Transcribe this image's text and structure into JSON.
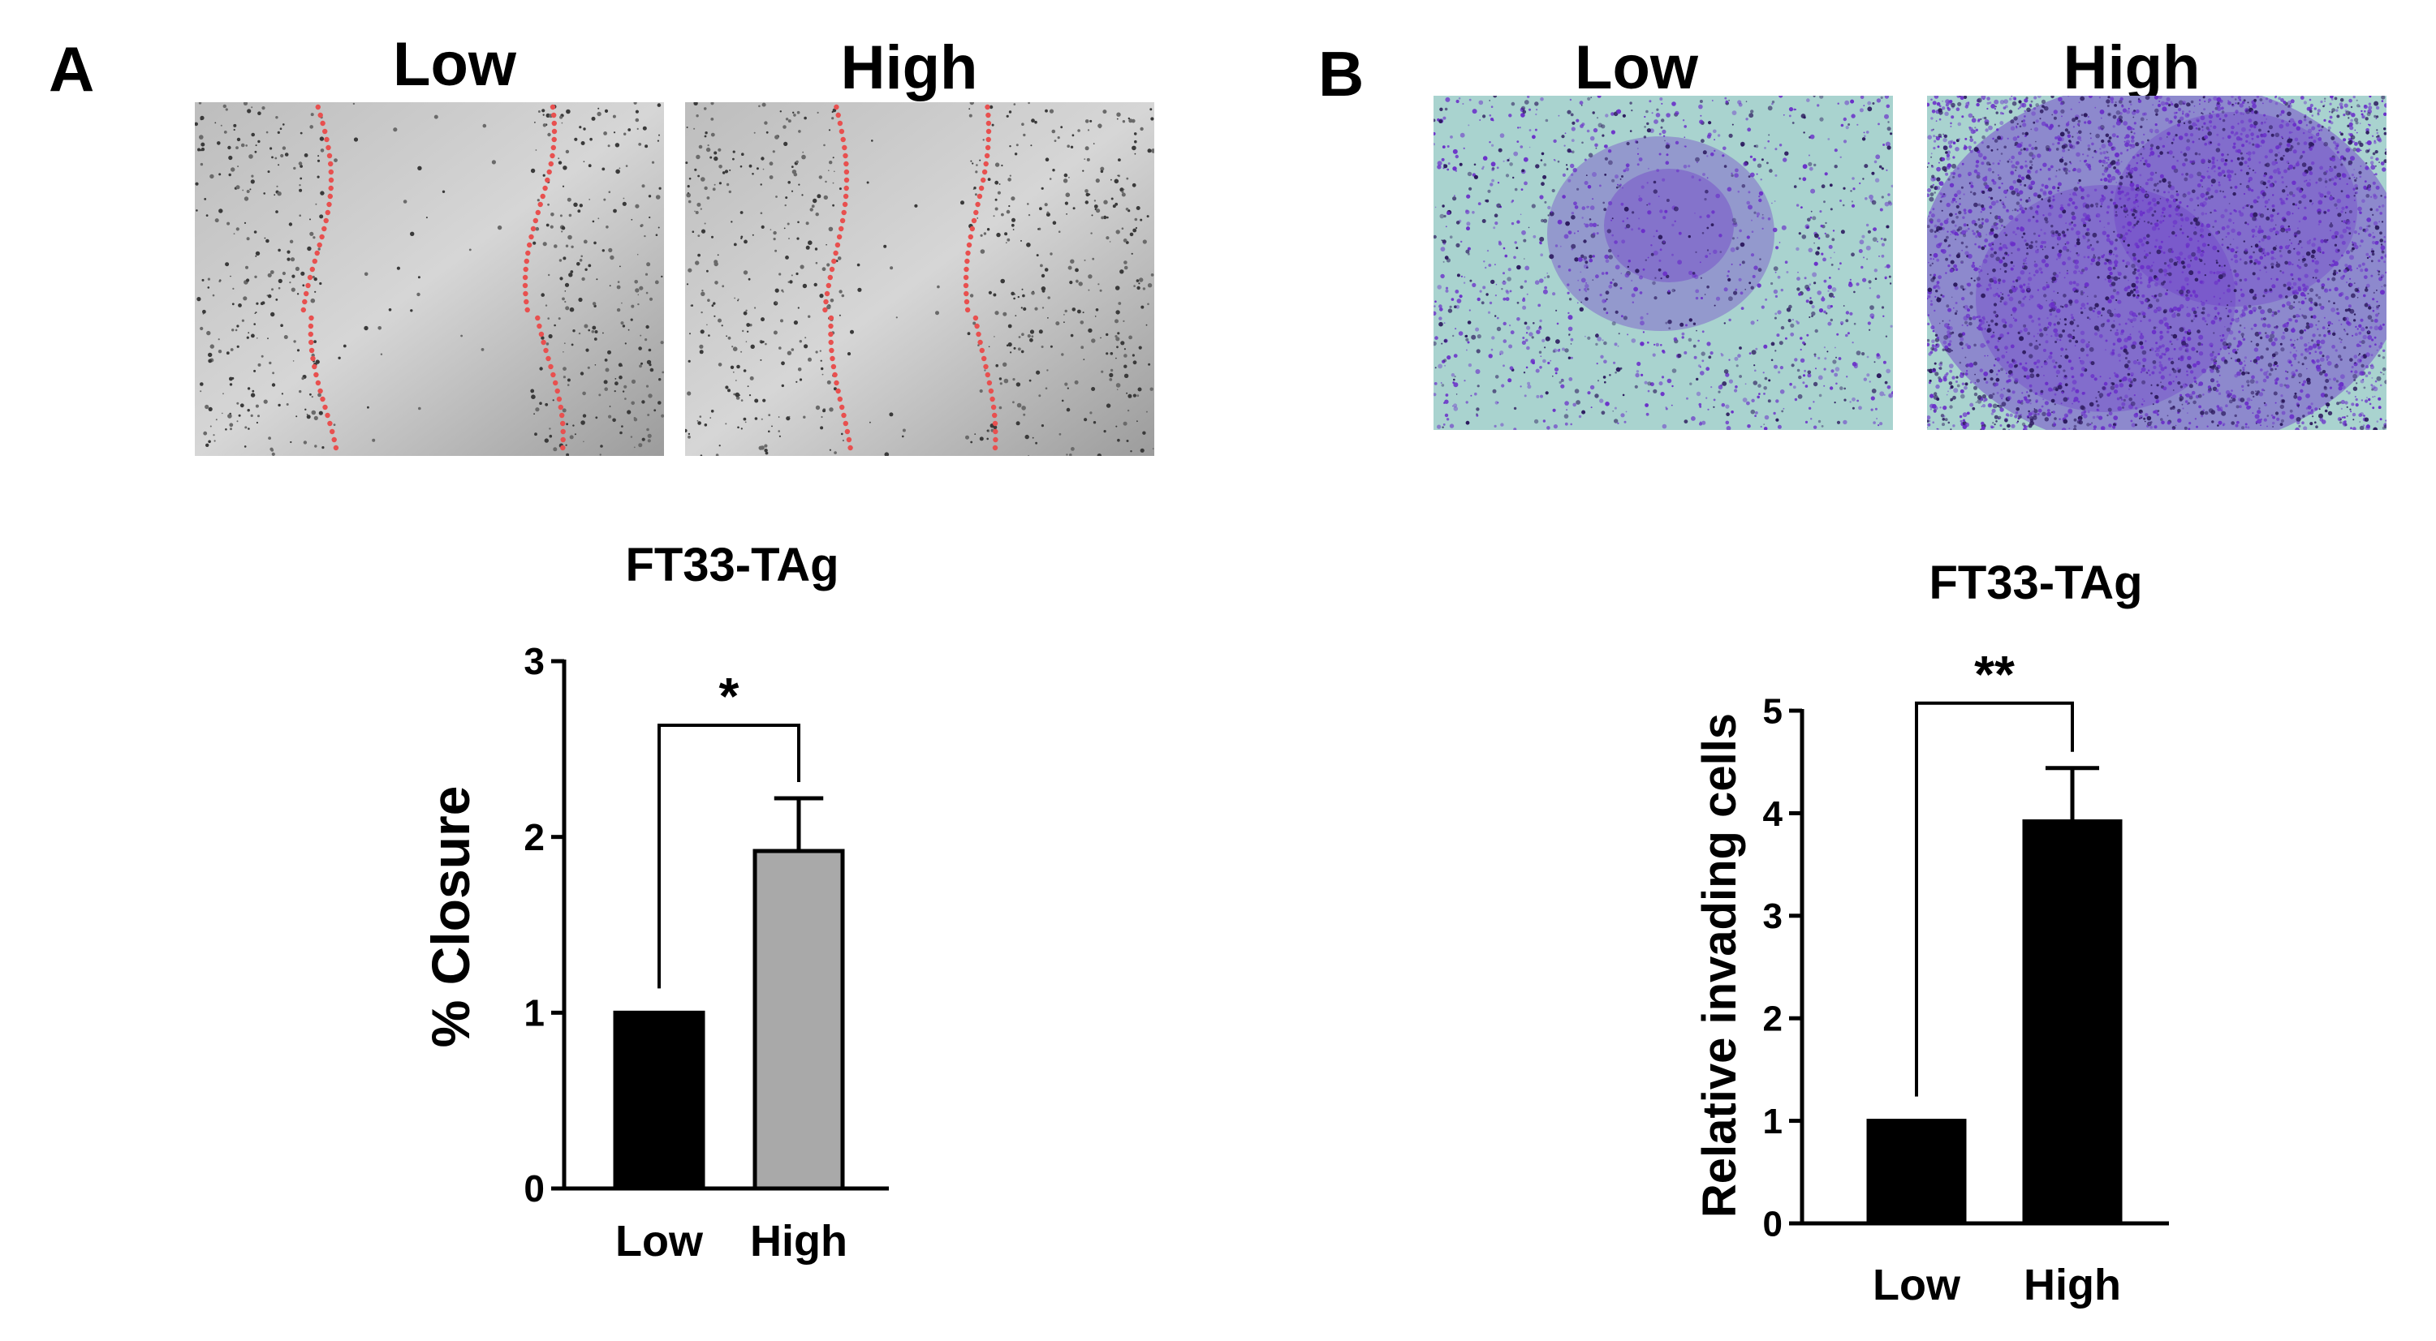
{
  "panels": {
    "A": {
      "letter": "A",
      "image_labels": [
        "Low",
        "High"
      ],
      "wound_line_color": "#e8504f"
    },
    "B": {
      "letter": "B",
      "image_labels": [
        "Low",
        "High"
      ],
      "stain_color": "#6a2fc9"
    }
  },
  "chart_data": [
    {
      "type": "bar",
      "title": "FT33-TAg",
      "categories": [
        "Low",
        "High"
      ],
      "values": [
        1.0,
        1.92
      ],
      "errors": [
        0,
        0.3
      ],
      "ylabel": "% Closure",
      "xlabel": "",
      "ylim": [
        0,
        3
      ],
      "yticks": [
        "0",
        "1",
        "2",
        "3"
      ],
      "bar_colors": [
        "#000000",
        "#a9a9a9"
      ],
      "significance": "*",
      "grid": false
    },
    {
      "type": "bar",
      "title": "FT33-TAg",
      "categories": [
        "Low",
        "High"
      ],
      "values": [
        1.0,
        3.92
      ],
      "errors": [
        0,
        0.52
      ],
      "ylabel": "Relative invading cells",
      "xlabel": "",
      "ylim": [
        0,
        5
      ],
      "yticks": [
        "0",
        "1",
        "2",
        "3",
        "4",
        "5"
      ],
      "bar_colors": [
        "#000000",
        "#000000"
      ],
      "significance": "**",
      "grid": false
    }
  ]
}
